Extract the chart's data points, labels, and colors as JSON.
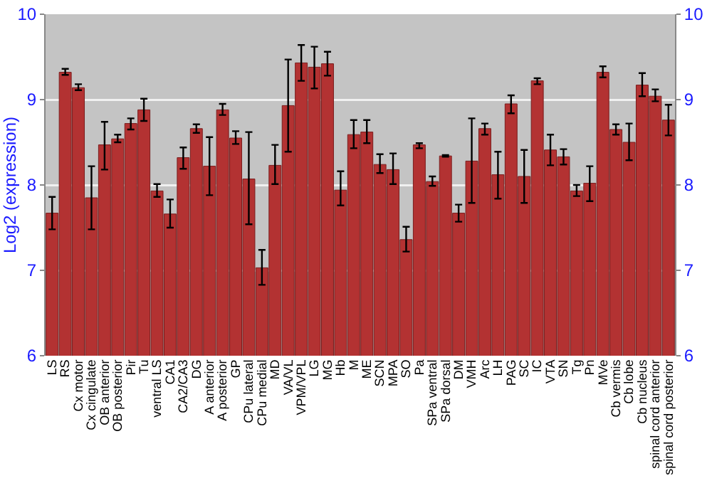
{
  "chart_data": {
    "type": "bar",
    "ylabel": "Log2 (expression)",
    "categories": [
      "LS",
      "RS",
      "Cx motor",
      "Cx cingulate",
      "OB anterior",
      "OB posterior",
      "Pir",
      "Tu",
      "ventral LS",
      "CA1",
      "CA2/CA3",
      "DG",
      "A anterior",
      "A posterior",
      "GP",
      "CPu lateral",
      "CPu medial",
      "MD",
      "VA/VL",
      "VPM/VPL",
      "LG",
      "MG",
      "Hb",
      "M",
      "ME",
      "SCN",
      "MPA",
      "SO",
      "Pa",
      "SPa ventral",
      "SPa dorsal",
      "DM",
      "VMH",
      "Arc",
      "LH",
      "PAG",
      "SC",
      "IC",
      "VTA",
      "SN",
      "Tg",
      "Pn",
      "MVe",
      "Cb vermis",
      "Cb lobe",
      "Cb nucleus",
      "spinal cord anterior",
      "spinal cord posterior"
    ],
    "values": [
      7.67,
      9.32,
      9.14,
      7.85,
      8.47,
      8.54,
      8.72,
      8.88,
      7.93,
      7.66,
      8.32,
      8.66,
      8.22,
      8.88,
      8.55,
      8.07,
      7.03,
      8.23,
      8.93,
      9.43,
      9.38,
      9.42,
      7.94,
      8.59,
      8.62,
      8.24,
      8.18,
      7.36,
      8.47,
      8.04,
      8.34,
      7.67,
      8.28,
      8.66,
      8.12,
      8.95,
      8.1,
      9.22,
      8.41,
      8.33,
      7.93,
      8.02,
      9.32,
      8.65,
      8.5,
      9.17,
      9.04,
      8.76
    ],
    "errors": [
      [
        7.48,
        7.86
      ],
      [
        9.29,
        9.36
      ],
      [
        9.11,
        9.18
      ],
      [
        7.48,
        8.22
      ],
      [
        8.18,
        8.74
      ],
      [
        8.5,
        8.59
      ],
      [
        8.65,
        8.78
      ],
      [
        8.75,
        9.01
      ],
      [
        7.86,
        8.01
      ],
      [
        7.5,
        7.83
      ],
      [
        8.19,
        8.44
      ],
      [
        8.61,
        8.71
      ],
      [
        7.88,
        8.56
      ],
      [
        8.82,
        8.95
      ],
      [
        8.48,
        8.63
      ],
      [
        7.54,
        8.62
      ],
      [
        6.83,
        7.24
      ],
      [
        8.01,
        8.47
      ],
      [
        8.39,
        9.47
      ],
      [
        9.22,
        9.64
      ],
      [
        9.13,
        9.62
      ],
      [
        9.28,
        9.56
      ],
      [
        7.76,
        8.16
      ],
      [
        8.43,
        8.76
      ],
      [
        8.49,
        8.76
      ],
      [
        8.14,
        8.36
      ],
      [
        8.01,
        8.37
      ],
      [
        7.22,
        7.51
      ],
      [
        8.43,
        8.49
      ],
      [
        7.99,
        8.1
      ],
      [
        8.33,
        8.35
      ],
      [
        7.57,
        7.77
      ],
      [
        7.79,
        8.78
      ],
      [
        8.59,
        8.72
      ],
      [
        7.84,
        8.39
      ],
      [
        8.84,
        9.05
      ],
      [
        7.79,
        8.41
      ],
      [
        9.18,
        9.25
      ],
      [
        8.23,
        8.59
      ],
      [
        8.24,
        8.42
      ],
      [
        7.87,
        8.0
      ],
      [
        7.81,
        8.22
      ],
      [
        9.26,
        9.39
      ],
      [
        8.59,
        8.71
      ],
      [
        8.29,
        8.72
      ],
      [
        9.04,
        9.31
      ],
      [
        8.98,
        9.12
      ],
      [
        8.58,
        8.94
      ]
    ],
    "color": "#b33232",
    "ylim": [
      6,
      10
    ],
    "yticks": [
      6,
      7,
      8,
      9,
      10
    ],
    "y2lim": [
      6,
      10
    ],
    "y2ticks": [
      6,
      7,
      8,
      9,
      10
    ],
    "grid": "y"
  }
}
